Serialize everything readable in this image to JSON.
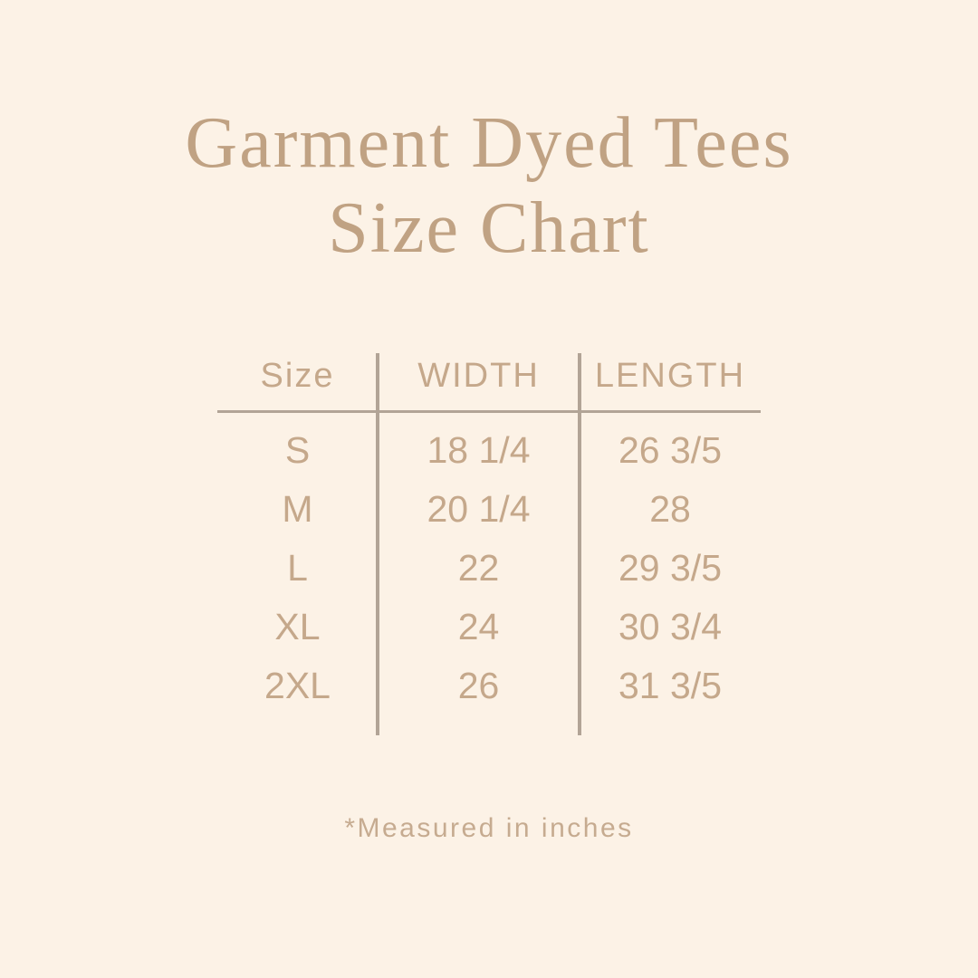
{
  "colors": {
    "bg": "#fcf2e6",
    "title": "#c0a283",
    "table-text": "#c5a88b",
    "line": "#b2a496",
    "footnote": "#c6ab90"
  },
  "title": {
    "line1": "Garment Dyed Tees",
    "line2": "Size Chart"
  },
  "table": {
    "headers": [
      "Size",
      "WIDTH",
      "LENGTH"
    ],
    "rows": [
      {
        "size": "S",
        "width": "18 1/4",
        "length": "26 3/5"
      },
      {
        "size": "M",
        "width": "20 1/4",
        "length": "28"
      },
      {
        "size": "L",
        "width": "22",
        "length": "29 3/5"
      },
      {
        "size": "XL",
        "width": "24",
        "length": "30 3/4"
      },
      {
        "size": "2XL",
        "width": "26",
        "length": "31 3/5"
      }
    ]
  },
  "footnote": {
    "text": "*Measured in inches"
  }
}
